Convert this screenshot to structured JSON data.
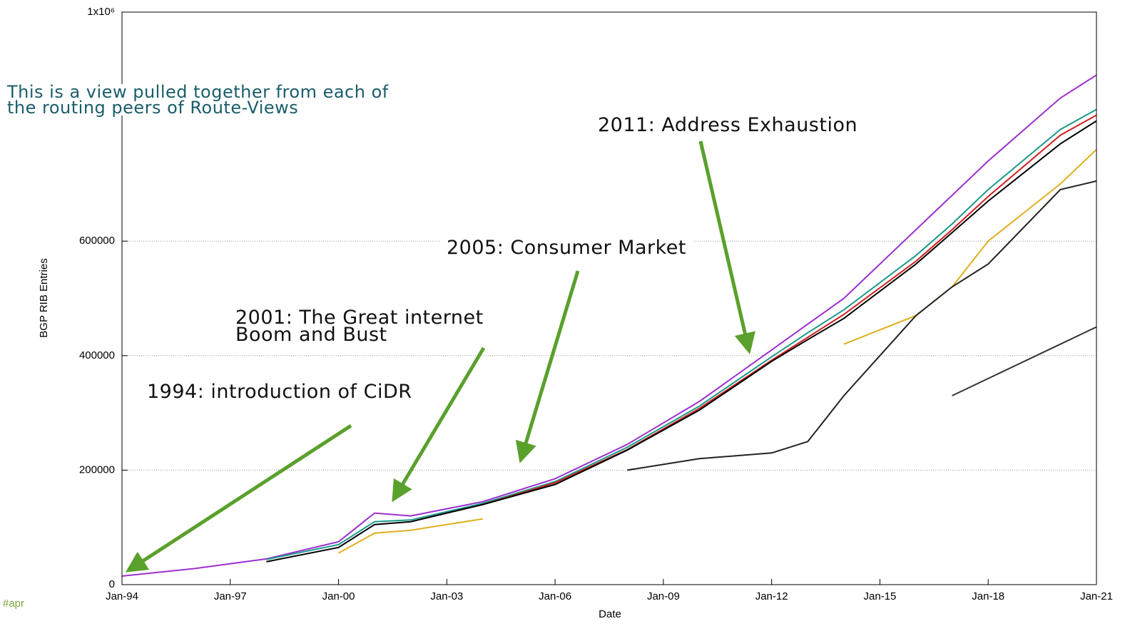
{
  "chart_data": {
    "type": "line",
    "y_label": "BGP RIB Entries",
    "x_label": "Date",
    "xlim": [
      1994,
      2021
    ],
    "xticks": [
      {
        "value": 1994,
        "label": "Jan-94"
      },
      {
        "value": 1997,
        "label": "Jan-97"
      },
      {
        "value": 2000,
        "label": "Jan-00"
      },
      {
        "value": 2003,
        "label": "Jan-03"
      },
      {
        "value": 2006,
        "label": "Jan-06"
      },
      {
        "value": 2009,
        "label": "Jan-09"
      },
      {
        "value": 2012,
        "label": "Jan-12"
      },
      {
        "value": 2015,
        "label": "Jan-15"
      },
      {
        "value": 2018,
        "label": "Jan-18"
      },
      {
        "value": 2021,
        "label": "Jan-21"
      }
    ],
    "ylim": [
      0,
      1000000
    ],
    "yticks": [
      0,
      200000,
      400000,
      600000,
      {
        "value": 1000000,
        "label": "1x10⁶"
      }
    ],
    "grid": true,
    "x": [
      1994,
      1996,
      1998,
      2000,
      2001,
      2002,
      2004,
      2006,
      2008,
      2010,
      2012,
      2013,
      2014,
      2016,
      2017,
      2018,
      2020,
      2021
    ],
    "series": [
      {
        "color": "#9b30d0",
        "values": [
          15000,
          28000,
          45000,
          75000,
          125000,
          120000,
          145000,
          185000,
          245000,
          320000,
          410000,
          455000,
          500000,
          620000,
          680000,
          740000,
          850000,
          890000
        ]
      },
      {
        "color": "#1a9a8a",
        "values": [
          null,
          null,
          44000,
          70000,
          110000,
          113000,
          142000,
          180000,
          240000,
          312000,
          398000,
          440000,
          480000,
          575000,
          630000,
          690000,
          795000,
          830000
        ]
      },
      {
        "color": "#d02020",
        "values": [
          null,
          null,
          null,
          null,
          null,
          null,
          140000,
          178000,
          236000,
          308000,
          392000,
          432000,
          472000,
          565000,
          620000,
          678000,
          785000,
          820000
        ]
      },
      {
        "color": "#000000",
        "values": [
          null,
          null,
          40000,
          65000,
          105000,
          110000,
          140000,
          175000,
          235000,
          305000,
          390000,
          428000,
          465000,
          560000,
          615000,
          670000,
          770000,
          810000
        ]
      },
      {
        "color": "#e0b020",
        "values": [
          null,
          null,
          null,
          55000,
          90000,
          95000,
          115000,
          null,
          null,
          null,
          null,
          null,
          420000,
          470000,
          520000,
          600000,
          700000,
          760000
        ]
      },
      {
        "color": "#222222",
        "values": [
          null,
          null,
          null,
          null,
          null,
          null,
          null,
          null,
          200000,
          220000,
          230000,
          250000,
          330000,
          470000,
          520000,
          560000,
          690000,
          705000
        ]
      },
      {
        "color": "#333333",
        "values": [
          null,
          null,
          null,
          null,
          null,
          null,
          null,
          null,
          null,
          null,
          null,
          null,
          null,
          null,
          330000,
          360000,
          420000,
          450000
        ]
      }
    ],
    "annotations": [
      "This is a view pulled together from each of the routing peers of Route-Views",
      "2011: Address Exhaustion",
      "2005: Consumer Market",
      "2001: The Great internet Boom and Bust",
      "1994: introduction of CiDR"
    ],
    "footer_tag": "#apr"
  }
}
